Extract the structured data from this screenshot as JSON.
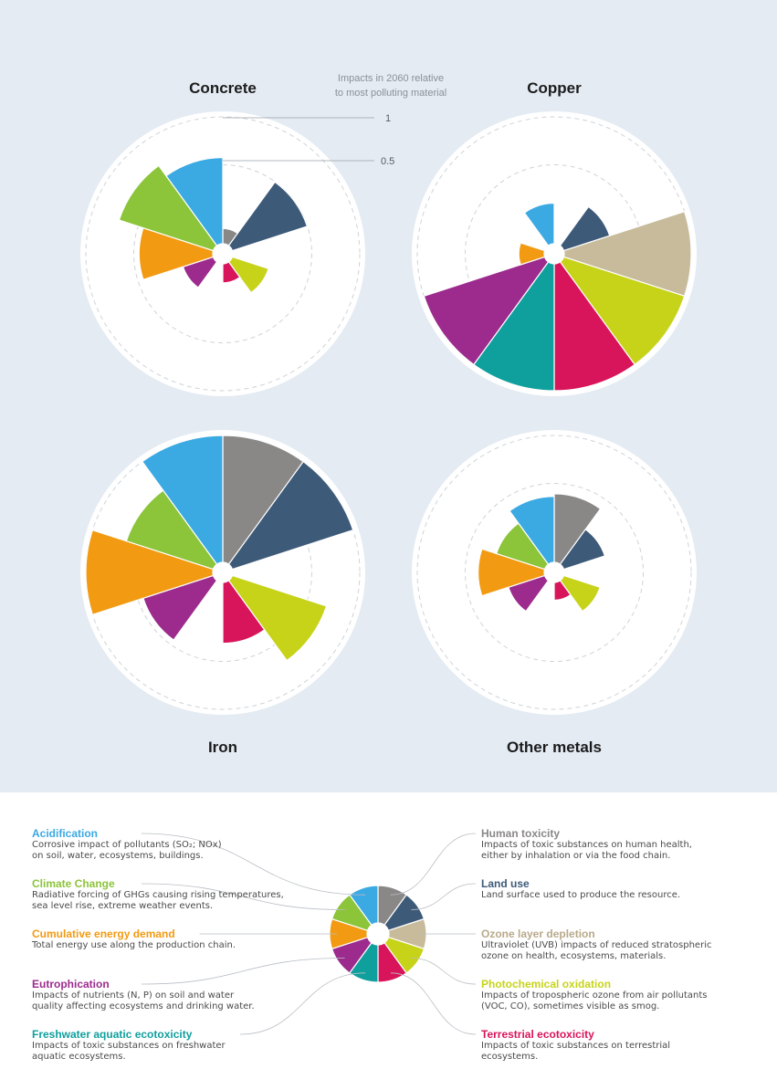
{
  "scale": {
    "note_line1": "Impacts in 2060 relative",
    "note_line2": "to most polluting material",
    "tick_1": "1",
    "tick_05": "0.5"
  },
  "chart_data": [
    {
      "type": "polar-area",
      "title": "Concrete",
      "title_position": "top",
      "rlim": [
        0,
        1
      ],
      "categories": [
        "Human toxicity",
        "Land use",
        "Ozone layer depletion",
        "Photochemical oxidation",
        "Terrestrial ecotoxicity",
        "Freshwater aquatic ecotoxicity",
        "Eutrophication",
        "Cumulative energy demand",
        "Climate Change",
        "Acidification"
      ],
      "values": [
        0.12,
        0.62,
        0,
        0.3,
        0.15,
        0,
        0.25,
        0.58,
        0.78,
        0.68
      ]
    },
    {
      "type": "polar-area",
      "title": "Copper",
      "title_position": "top",
      "rlim": [
        0,
        1
      ],
      "categories": [
        "Human toxicity",
        "Land use",
        "Ozone layer depletion",
        "Photochemical oxidation",
        "Terrestrial ecotoxicity",
        "Freshwater aquatic ecotoxicity",
        "Eutrophication",
        "Cumulative energy demand",
        "Climate Change",
        "Acidification"
      ],
      "values": [
        0,
        0.38,
        1.0,
        1.0,
        1.0,
        1.0,
        1.0,
        0.2,
        0,
        0.32
      ]
    },
    {
      "type": "polar-area",
      "title": "Iron",
      "title_position": "bottom",
      "rlim": [
        0,
        1
      ],
      "categories": [
        "Human toxicity",
        "Land use",
        "Ozone layer depletion",
        "Photochemical oxidation",
        "Terrestrial ecotoxicity",
        "Freshwater aquatic ecotoxicity",
        "Eutrophication",
        "Cumulative energy demand",
        "Climate Change",
        "Acidification"
      ],
      "values": [
        1.0,
        1.0,
        0,
        0.78,
        0.48,
        0,
        0.58,
        1.0,
        0.72,
        1.0
      ]
    },
    {
      "type": "polar-area",
      "title": "Other metals",
      "title_position": "bottom",
      "rlim": [
        0,
        1
      ],
      "categories": [
        "Human toxicity",
        "Land use",
        "Ozone layer depletion",
        "Photochemical oxidation",
        "Terrestrial ecotoxicity",
        "Freshwater aquatic ecotoxicity",
        "Eutrophication",
        "Cumulative energy demand",
        "Climate Change",
        "Acidification"
      ],
      "values": [
        0.54,
        0.34,
        0,
        0.3,
        0.14,
        0,
        0.3,
        0.52,
        0.4,
        0.52
      ]
    }
  ],
  "categories": [
    {
      "key": "human_toxicity",
      "name": "Human toxicity",
      "color": "#8a8787",
      "desc1": "Impacts of toxic substances on human health,",
      "desc2": "either by inhalation or via the food chain."
    },
    {
      "key": "land_use",
      "name": "Land use",
      "color": "#3e5a79",
      "desc1": "Land surface used to produce the resource.",
      "desc2": ""
    },
    {
      "key": "ozone",
      "name": "Ozone layer depletion",
      "color": "#c8bb9b",
      "desc1": "Ultraviolet (UVB) impacts of reduced stratospheric",
      "desc2": "ozone on health, ecosystems, materials."
    },
    {
      "key": "photochem",
      "name": "Photochemical oxidation",
      "color": "#c7d319",
      "desc1": "Impacts of tropospheric ozone from air pollutants",
      "desc2": "(VOC, CO), sometimes visible as smog."
    },
    {
      "key": "terrestrial",
      "name": "Terrestrial ecotoxicity",
      "color": "#d8145a",
      "desc1": "Impacts of toxic substances on terrestrial",
      "desc2": "ecosystems."
    },
    {
      "key": "freshwater",
      "name": "Freshwater aquatic ecotoxicity",
      "color": "#0f9f9d",
      "desc1": "Impacts of toxic substances on freshwater",
      "desc2": "aquatic ecosystems."
    },
    {
      "key": "eutrophication",
      "name": "Eutrophication",
      "color": "#9c2b8d",
      "desc1": "Impacts of nutrients (N, P) on soil and water",
      "desc2": "quality affecting ecosystems and drinking water."
    },
    {
      "key": "energy",
      "name": "Cumulative energy demand",
      "color": "#f29a12",
      "desc1": "Total energy use along the production chain.",
      "desc2": ""
    },
    {
      "key": "climate",
      "name": "Climate Change",
      "color": "#8cc43a",
      "desc1": "Radiative forcing of GHGs causing rising temperatures,",
      "desc2": "sea level rise, extreme weather events."
    },
    {
      "key": "acidification",
      "name": "Acidification",
      "color": "#3ba9e2",
      "desc1": "Corrosive impact of pollutants (SO₂; NOx)",
      "desc2": "on soil, water, ecosystems, buildings."
    }
  ]
}
